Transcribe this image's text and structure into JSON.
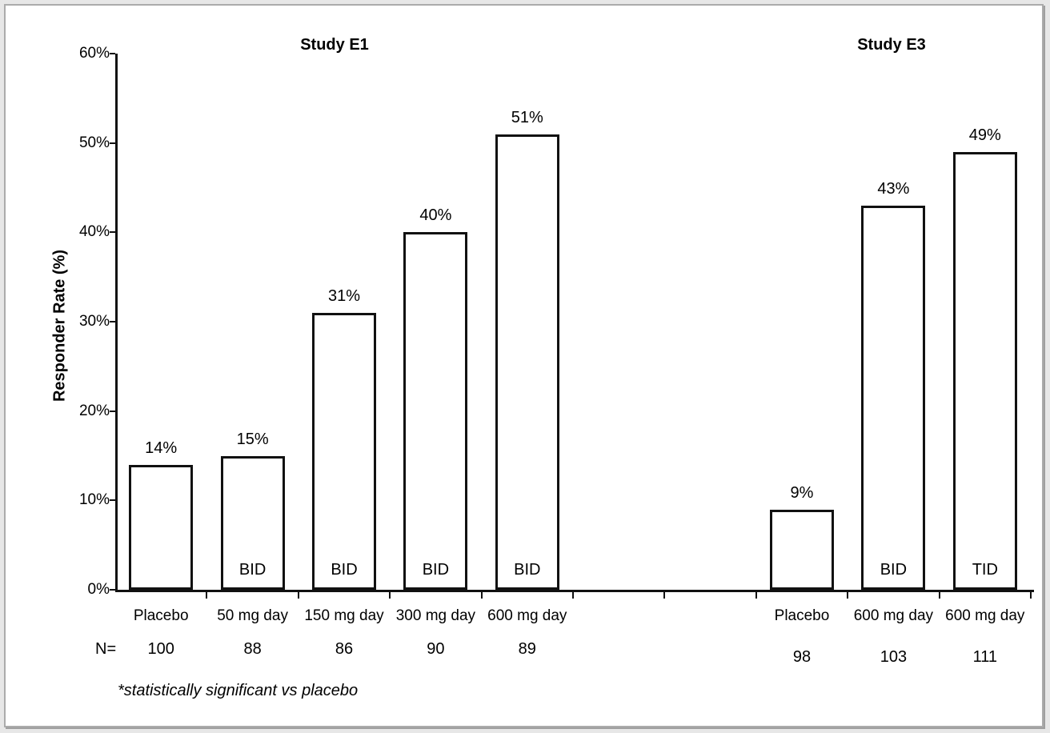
{
  "page": {
    "n_prefix": "N=",
    "footnote": "*statistically significant vs placebo"
  },
  "y_axis": {
    "title": "Responder Rate (%)",
    "min": 0,
    "max": 60,
    "step": 10,
    "tick_labels": [
      "0%",
      "10%",
      "20%",
      "30%",
      "40%",
      "50%",
      "60%"
    ]
  },
  "chart_data": {
    "type": "bar",
    "title": "",
    "xlabel": "",
    "ylabel": "Responder Rate (%)",
    "ylim": [
      0,
      60
    ],
    "grid": false,
    "legend": false,
    "bar_fill": "#ffffff",
    "bar_border": "#111111",
    "groups": [
      {
        "title": "Study E1",
        "categories": [
          "Placebo",
          "50 mg day",
          "150 mg day",
          "300 mg day",
          "600 mg day"
        ],
        "values": [
          14,
          15,
          31,
          40,
          51
        ],
        "value_labels": [
          "14%",
          "15%",
          "31%",
          "40%",
          "51%"
        ],
        "regimens": [
          "",
          "BID",
          "BID",
          "BID",
          "BID"
        ],
        "n": [
          100,
          88,
          86,
          90,
          89
        ]
      },
      {
        "title": "Study E3",
        "categories": [
          "Placebo",
          "600 mg day",
          "600 mg day"
        ],
        "values": [
          9,
          43,
          49
        ],
        "value_labels": [
          "9%",
          "43%",
          "49%"
        ],
        "regimens": [
          "",
          "BID",
          "TID"
        ],
        "n": [
          98,
          103,
          111
        ]
      }
    ]
  }
}
